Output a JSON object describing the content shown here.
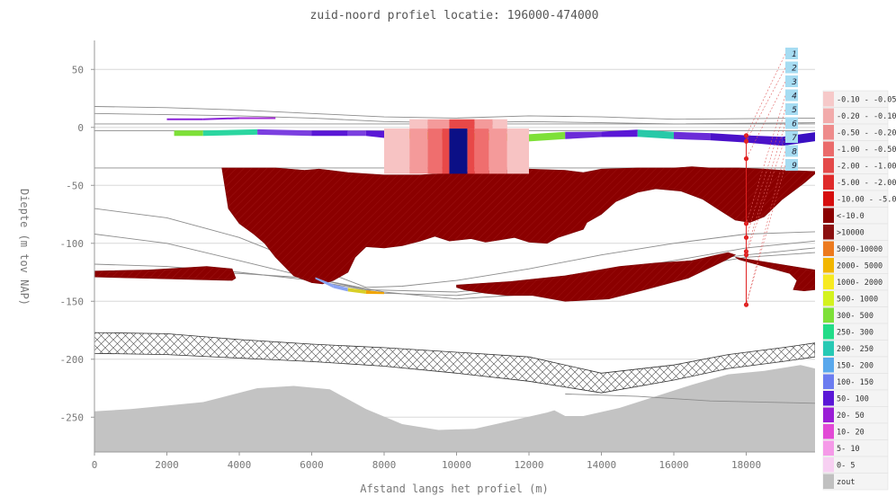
{
  "chart_data": {
    "type": "area",
    "title": "zuid-noord profiel locatie: 196000-474000",
    "xlabel": "Afstand langs het profiel (m)",
    "ylabel": "Diepte (m tov NAP)",
    "xlim": [
      0,
      19900
    ],
    "ylim": [
      -280,
      75
    ],
    "x_ticks": [
      0,
      2000,
      4000,
      6000,
      8000,
      10000,
      12000,
      14000,
      16000,
      18000
    ],
    "y_ticks": [
      50,
      0,
      -50,
      -100,
      -150,
      -200,
      -250
    ],
    "grid": "horizontal",
    "legend_position": "right",
    "well_x": 18000,
    "well_top": -7,
    "well_bottom": -154,
    "well_dots": [
      -7,
      -12,
      -27,
      -83,
      -95,
      -107,
      -110,
      -153
    ],
    "well_labels": [
      "1",
      "2",
      "3",
      "4",
      "5",
      "6",
      "7",
      "8",
      "9"
    ],
    "layer_lines": [
      {
        "x": [
          0,
          2000,
          4000,
          6000,
          8000,
          10000,
          12000,
          14000,
          16000,
          19900
        ],
        "y": [
          18,
          17,
          15,
          12,
          9,
          8,
          10,
          9,
          7,
          8
        ]
      },
      {
        "x": [
          0,
          2000,
          4000,
          6000,
          8000,
          10000,
          12000,
          14000,
          16000,
          19900
        ],
        "y": [
          12,
          11,
          10,
          8,
          5,
          4,
          5,
          4,
          3,
          4
        ]
      },
      {
        "x": [
          0,
          19900
        ],
        "y": [
          3,
          3
        ]
      },
      {
        "x": [
          0,
          19900
        ],
        "y": [
          -3,
          -3
        ]
      },
      {
        "x": [
          0,
          3500,
          19900
        ],
        "y": [
          -35,
          -35,
          -35
        ]
      },
      {
        "x": [
          0,
          2000,
          4000,
          6000,
          7500,
          8500,
          10000,
          12000,
          14000,
          16000,
          18000,
          19900
        ],
        "y": [
          -70,
          -78,
          -95,
          -120,
          -138,
          -137,
          -132,
          -122,
          -110,
          -100,
          -92,
          -90
        ]
      },
      {
        "x": [
          0,
          2000,
          4000,
          6000,
          7500,
          10000,
          12000,
          14000,
          16000,
          18000,
          19900
        ],
        "y": [
          -92,
          -100,
          -115,
          -130,
          -140,
          -142,
          -136,
          -125,
          -115,
          -104,
          -98
        ]
      },
      {
        "x": [
          0,
          2000,
          4000,
          6000,
          8000,
          10000,
          12000,
          14000,
          16000,
          18000,
          19900
        ],
        "y": [
          -118,
          -120,
          -125,
          -132,
          -143,
          -145,
          -138,
          -127,
          -118,
          -110,
          -104
        ]
      },
      {
        "x": [
          0,
          4000,
          6000,
          8000,
          10000,
          12000,
          14000,
          16000,
          18000,
          19900
        ],
        "y": [
          -125,
          -126,
          -130,
          -142,
          -148,
          -144,
          -132,
          -122,
          -112,
          -108
        ]
      },
      {
        "x": [
          13000,
          15000,
          17000,
          19900
        ],
        "y": [
          -230,
          -232,
          -236,
          -238
        ]
      }
    ],
    "salt_top": {
      "x": [
        0,
        2000,
        4000,
        6000,
        8000,
        10000,
        12000,
        14000,
        16000,
        17500,
        19000,
        19900
      ],
      "y": [
        -177,
        -178,
        -183,
        -187,
        -190,
        -194,
        -198,
        -212,
        -205,
        -196,
        -190,
        -186
      ]
    },
    "salt_bottom": {
      "x": [
        0,
        2000,
        4000,
        6000,
        8000,
        10000,
        12000,
        14000,
        16000,
        17500,
        19000,
        19900
      ],
      "y": [
        -195,
        -196,
        -199,
        -202,
        -206,
        -212,
        -219,
        -229,
        -218,
        -208,
        -202,
        -198
      ]
    },
    "grey_top": {
      "x": [
        0,
        1000,
        2000,
        3000,
        3500,
        4500,
        5500,
        6500,
        7500,
        8500,
        9500,
        10500,
        11500,
        12500,
        12700,
        13000,
        13500,
        14500,
        15500,
        16500,
        17500,
        18500,
        19500,
        19900
      ],
      "y": [
        -245,
        -243,
        -240,
        -237,
        -233,
        -225,
        -223,
        -226,
        -243,
        -256,
        -261,
        -260,
        -253,
        -246,
        -244,
        -249,
        -249,
        -242,
        -232,
        -222,
        -213,
        -210,
        -205,
        -208
      ]
    },
    "red_bodies": [
      {
        "x": [
          3520,
          4000,
          5000,
          5800,
          6200,
          6500,
          7000,
          7500,
          8000,
          9000,
          10000,
          11000,
          12000,
          13000,
          13500,
          14000,
          15000,
          15500,
          16000,
          16500,
          17000,
          17500,
          17800,
          18500,
          19000,
          19900,
          19900,
          19600,
          19000,
          18500,
          18100,
          17700,
          17300,
          16800,
          16200,
          15500,
          15000,
          14400,
          14000,
          13600,
          13500,
          12800,
          12500,
          12000,
          11600,
          11200,
          10800,
          10400,
          9800,
          9400,
          9000,
          8500,
          8000,
          7500,
          7200,
          7000,
          6600,
          6300,
          6000,
          5500,
          5000,
          4700,
          4400,
          4000,
          3700
        ],
        "y": [
          -35,
          -35,
          -35,
          -37,
          -36,
          -37,
          -39,
          -40,
          -41,
          -41,
          -39,
          -37,
          -36,
          -37,
          -39,
          -36,
          -35,
          -35,
          -35,
          -34,
          -35,
          -35,
          -35,
          -36,
          -37,
          -38,
          -40,
          -48,
          -62,
          -77,
          -82,
          -80,
          -72,
          -62,
          -55,
          -53,
          -56,
          -64,
          -75,
          -82,
          -88,
          -95,
          -100,
          -99,
          -95,
          -97,
          -99,
          -96,
          -98,
          -94,
          -98,
          -102,
          -104,
          -103,
          -112,
          -125,
          -132,
          -135,
          -134,
          -128,
          -112,
          -100,
          -92,
          -83,
          -70
        ]
      },
      {
        "x": [
          0,
          1500,
          3100,
          3800,
          3900,
          3800,
          2500,
          1200,
          0
        ],
        "y": [
          -124,
          -123,
          -120,
          -122,
          -130,
          -132,
          -131,
          -130,
          -129
        ]
      },
      {
        "x": [
          10000,
          11500,
          13000,
          14500,
          15500,
          16500,
          17200,
          17500,
          17700,
          17400,
          16400,
          15200,
          14200,
          13000,
          12100,
          11400,
          10800,
          10200,
          10000
        ],
        "y": [
          -136,
          -133,
          -128,
          -120,
          -117,
          -115,
          -110,
          -108,
          -110,
          -115,
          -130,
          -140,
          -148,
          -150,
          -145,
          -145,
          -143,
          -140,
          -138
        ]
      },
      {
        "x": [
          17700,
          18500,
          19500,
          19900,
          19900,
          19600,
          19300,
          19400,
          19200,
          18500,
          17800
        ],
        "y": [
          -112,
          -116,
          -121,
          -123,
          -140,
          -141,
          -140,
          -132,
          -126,
          -120,
          -114
        ]
      }
    ],
    "resistivity_bands": [
      {
        "x": [
          2200,
          3000,
          4500,
          6000,
          7000,
          7500,
          8000,
          9000,
          10000,
          11000,
          12000,
          13000,
          14000,
          15000,
          16000,
          17000,
          18000,
          19000,
          19900
        ],
        "y": [
          -5,
          -5,
          -4,
          -5,
          -5,
          -5,
          -6,
          -7,
          -8,
          -8,
          -9,
          -7,
          -6,
          -5,
          -7,
          -8,
          -10,
          -12,
          -8
        ],
        "thick": [
          3,
          3,
          3,
          3,
          3,
          3,
          4,
          4,
          4,
          4,
          4,
          4,
          3,
          4,
          4,
          4,
          4,
          5,
          5
        ],
        "colors": [
          "#7ee038",
          "#2bd6a0",
          "#7b3fe0",
          "#5a17d6",
          "#7b3fe0",
          "#5a17d6",
          "#c9f227",
          "#d4f21f",
          "#c9f227",
          "#b4ec2a",
          "#7ee038",
          "#6b2cd8",
          "#5a17d6",
          "#27c9a8",
          "#6b2cd8",
          "#4b12c9",
          "#4b12c9",
          "#3a0fc2",
          "#7b3fe0"
        ]
      },
      {
        "x": [
          2000,
          3000,
          4000,
          5000
        ],
        "y": [
          7,
          7,
          8,
          8
        ],
        "thick": [
          1,
          1,
          1,
          1
        ],
        "colors": [
          "#8a22d8",
          "#8a22d8",
          "#a42ed6",
          "#a42ed6"
        ]
      },
      {
        "x": [
          6100,
          6600,
          7000,
          7500,
          8000
        ],
        "y": [
          -130,
          -137,
          -140,
          -142,
          -143
        ],
        "thick": [
          1,
          2,
          2,
          2,
          1
        ],
        "colors": [
          "#8aa4f2",
          "#8aa4f2",
          "#d8cf28",
          "#f0a400",
          "#d8cf28"
        ]
      }
    ],
    "plume_columns": [
      {
        "x0": 8000,
        "x1": 8700,
        "top": -1,
        "bottom": -40,
        "color": "#f7c3c3"
      },
      {
        "x0": 8700,
        "x1": 9200,
        "top": -1,
        "bottom": -40,
        "color": "#f49a9a"
      },
      {
        "x0": 9200,
        "x1": 9600,
        "top": -1,
        "bottom": -40,
        "color": "#ef6e6e"
      },
      {
        "x0": 9600,
        "x1": 9800,
        "top": -1,
        "bottom": -40,
        "color": "#e84848"
      },
      {
        "x0": 9800,
        "x1": 10300,
        "top": -1,
        "bottom": -40,
        "color": "#0b0f86"
      },
      {
        "x0": 10300,
        "x1": 10500,
        "top": -1,
        "bottom": -40,
        "color": "#e84848"
      },
      {
        "x0": 10500,
        "x1": 10900,
        "top": -1,
        "bottom": -40,
        "color": "#ef6e6e"
      },
      {
        "x0": 10900,
        "x1": 11400,
        "top": -1,
        "bottom": -40,
        "color": "#f49a9a"
      },
      {
        "x0": 11400,
        "x1": 12000,
        "top": -1,
        "bottom": -40,
        "color": "#f7c3c3"
      },
      {
        "x0": 8700,
        "x1": 9200,
        "top": 7,
        "bottom": -1,
        "color": "#f7c3c3"
      },
      {
        "x0": 9200,
        "x1": 9800,
        "top": 7,
        "bottom": -1,
        "color": "#f49a9a"
      },
      {
        "x0": 9800,
        "x1": 10500,
        "top": 7,
        "bottom": -1,
        "color": "#e84848"
      },
      {
        "x0": 10500,
        "x1": 11000,
        "top": 7,
        "bottom": -1,
        "color": "#f49a9a"
      },
      {
        "x0": 11000,
        "x1": 11400,
        "top": 7,
        "bottom": -1,
        "color": "#f7c3c3"
      }
    ],
    "legend": [
      {
        "label": "-0.10 - -0.05",
        "color": "#f6c9c9"
      },
      {
        "label": "-0.20 - -0.10",
        "color": "#f2abab"
      },
      {
        "label": "-0.50 - -0.20",
        "color": "#ee8b8b"
      },
      {
        "label": "-1.00 - -0.50",
        "color": "#ea6b6b"
      },
      {
        "label": "-2.00 - -1.00",
        "color": "#e44a4a"
      },
      {
        "label": "-5.00 - -2.00",
        "color": "#df2a2a"
      },
      {
        "label": "-10.00 - -5.00",
        "color": "#d60e0e"
      },
      {
        "label": "<-10.0",
        "color": "#8b0000"
      },
      {
        "label": ">10000",
        "color": "#8b1010"
      },
      {
        "label": "5000-10000",
        "color": "#ec7a1e"
      },
      {
        "label": "2000- 5000",
        "color": "#f2b600"
      },
      {
        "label": "1000- 2000",
        "color": "#f7ea22"
      },
      {
        "label": "500- 1000",
        "color": "#d4f21f"
      },
      {
        "label": "300- 500",
        "color": "#7ee038"
      },
      {
        "label": "250- 300",
        "color": "#22dc88"
      },
      {
        "label": "200- 250",
        "color": "#27c9b4"
      },
      {
        "label": "150- 200",
        "color": "#59a8ec"
      },
      {
        "label": "100- 150",
        "color": "#6b7cf0"
      },
      {
        "label": "50- 100",
        "color": "#5a17d6"
      },
      {
        "label": "20- 50",
        "color": "#9a1ed6"
      },
      {
        "label": "10- 20",
        "color": "#e24ad6"
      },
      {
        "label": "5- 10",
        "color": "#f59ae8"
      },
      {
        "label": "0- 5",
        "color": "#f7d0f2"
      },
      {
        "label": "zout",
        "color": "#c0c0c0"
      }
    ],
    "colors": {
      "red_body": "#8b0000",
      "grid": "#d8d8d8",
      "layer_line": "#8c8c8c",
      "grey_basement": "#c3c3c3",
      "well": "#e02020",
      "label_box": "#a6dcf2"
    }
  }
}
